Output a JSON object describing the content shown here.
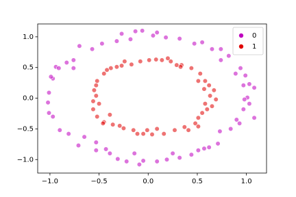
{
  "chart_data": {
    "type": "scatter",
    "xlim": [
      -1.125,
      1.205
    ],
    "ylim": [
      -1.22,
      1.21
    ],
    "xticks": [
      {
        "value": -1.0,
        "label": "−1.0"
      },
      {
        "value": -0.5,
        "label": "−0.5"
      },
      {
        "value": 0.0,
        "label": "0.0"
      },
      {
        "value": 0.5,
        "label": "0.5"
      },
      {
        "value": 1.0,
        "label": "1.0"
      }
    ],
    "yticks": [
      {
        "value": -1.0,
        "label": "−1.0"
      },
      {
        "value": -0.5,
        "label": "−0.5"
      },
      {
        "value": 0.0,
        "label": "0.0"
      },
      {
        "value": 0.5,
        "label": "0.5"
      },
      {
        "value": 1.0,
        "label": "1.0"
      }
    ],
    "legend": "upper right",
    "series": [
      {
        "name": "0",
        "color": "#bf00bf",
        "x": [
          -0.27,
          -0.13,
          -0.06,
          0.05,
          0.18,
          0.32,
          0.47,
          0.55,
          0.65,
          0.74,
          0.82,
          0.94,
          0.99,
          0.97,
          1.03,
          1.08,
          1.01,
          1.03,
          0.97,
          1.08,
          0.93,
          0.84,
          0.73,
          0.71,
          0.62,
          0.51,
          0.44,
          0.32,
          0.19,
          0.09,
          -0.05,
          -0.09,
          -0.22,
          -0.31,
          -0.43,
          -0.53,
          -0.65,
          -0.71,
          -0.81,
          -0.9,
          -0.97,
          -1.01,
          -1.02,
          -1.01,
          -0.97,
          -0.94,
          -0.83,
          -0.76,
          -0.7,
          -0.57,
          -0.47,
          -0.32,
          -0.18,
          -0.91,
          -0.99,
          -0.76,
          -0.53,
          -0.39,
          -0.14,
          0.25,
          0.57,
          0.9,
          0.98,
          0.89,
          0.74,
          0.09
        ],
        "values": [
          1.05,
          1.09,
          1.1,
          1.02,
          0.99,
          0.97,
          0.89,
          0.91,
          0.8,
          0.8,
          0.69,
          0.49,
          0.37,
          0.21,
          0.23,
          0.17,
          0.01,
          -0.09,
          -0.18,
          -0.32,
          -0.41,
          -0.5,
          -0.54,
          -0.74,
          -0.8,
          -0.85,
          -0.92,
          -0.97,
          -1.0,
          -1.03,
          -1.02,
          -1.08,
          -1.03,
          -0.99,
          -0.83,
          -0.72,
          -0.63,
          -0.77,
          -0.58,
          -0.52,
          -0.3,
          -0.24,
          -0.07,
          0.09,
          0.32,
          0.51,
          0.58,
          0.62,
          0.85,
          0.8,
          0.89,
          0.93,
          0.96,
          0.49,
          0.35,
          0.49,
          -0.85,
          -0.9,
          -0.9,
          -0.9,
          -0.82,
          -0.35,
          -0.02,
          0.4,
          0.62,
          1.07
        ]
      },
      {
        "name": "1",
        "color": "#e00000",
        "x": [
          0.01,
          0.14,
          0.23,
          0.34,
          0.44,
          0.53,
          0.58,
          0.62,
          0.67,
          0.69,
          0.58,
          0.6,
          0.51,
          0.48,
          0.37,
          0.27,
          0.16,
          0.04,
          -0.05,
          -0.15,
          -0.25,
          -0.36,
          -0.45,
          -0.52,
          -0.56,
          -0.56,
          -0.55,
          -0.52,
          -0.45,
          -0.38,
          -0.27,
          -0.17,
          -0.08,
          0.08,
          0.29,
          0.51,
          0.63,
          0.55,
          0.41,
          0.09,
          -0.11,
          -0.29,
          -0.5,
          -0.53,
          -0.42,
          -0.32,
          0.33,
          0.57,
          0.51,
          -0.01,
          -0.39,
          -0.53,
          -0.24,
          0.2,
          0.65,
          -0.46
        ],
        "values": [
          0.62,
          0.62,
          0.6,
          0.54,
          0.49,
          0.4,
          0.28,
          0.21,
          0.13,
          -0.02,
          -0.09,
          -0.18,
          -0.32,
          -0.41,
          -0.47,
          -0.52,
          -0.58,
          -0.59,
          -0.58,
          -0.52,
          -0.49,
          -0.43,
          -0.39,
          -0.3,
          -0.18,
          -0.05,
          0.13,
          0.28,
          0.4,
          0.49,
          0.53,
          0.55,
          0.6,
          0.63,
          0.54,
          0.28,
          0.04,
          -0.24,
          -0.52,
          -0.5,
          -0.58,
          -0.45,
          -0.09,
          0.21,
          0.46,
          0.51,
          0.51,
          0.15,
          -0.46,
          -0.52,
          -0.27,
          0.04,
          0.6,
          0.65,
          -0.13,
          -0.41
        ]
      }
    ]
  }
}
